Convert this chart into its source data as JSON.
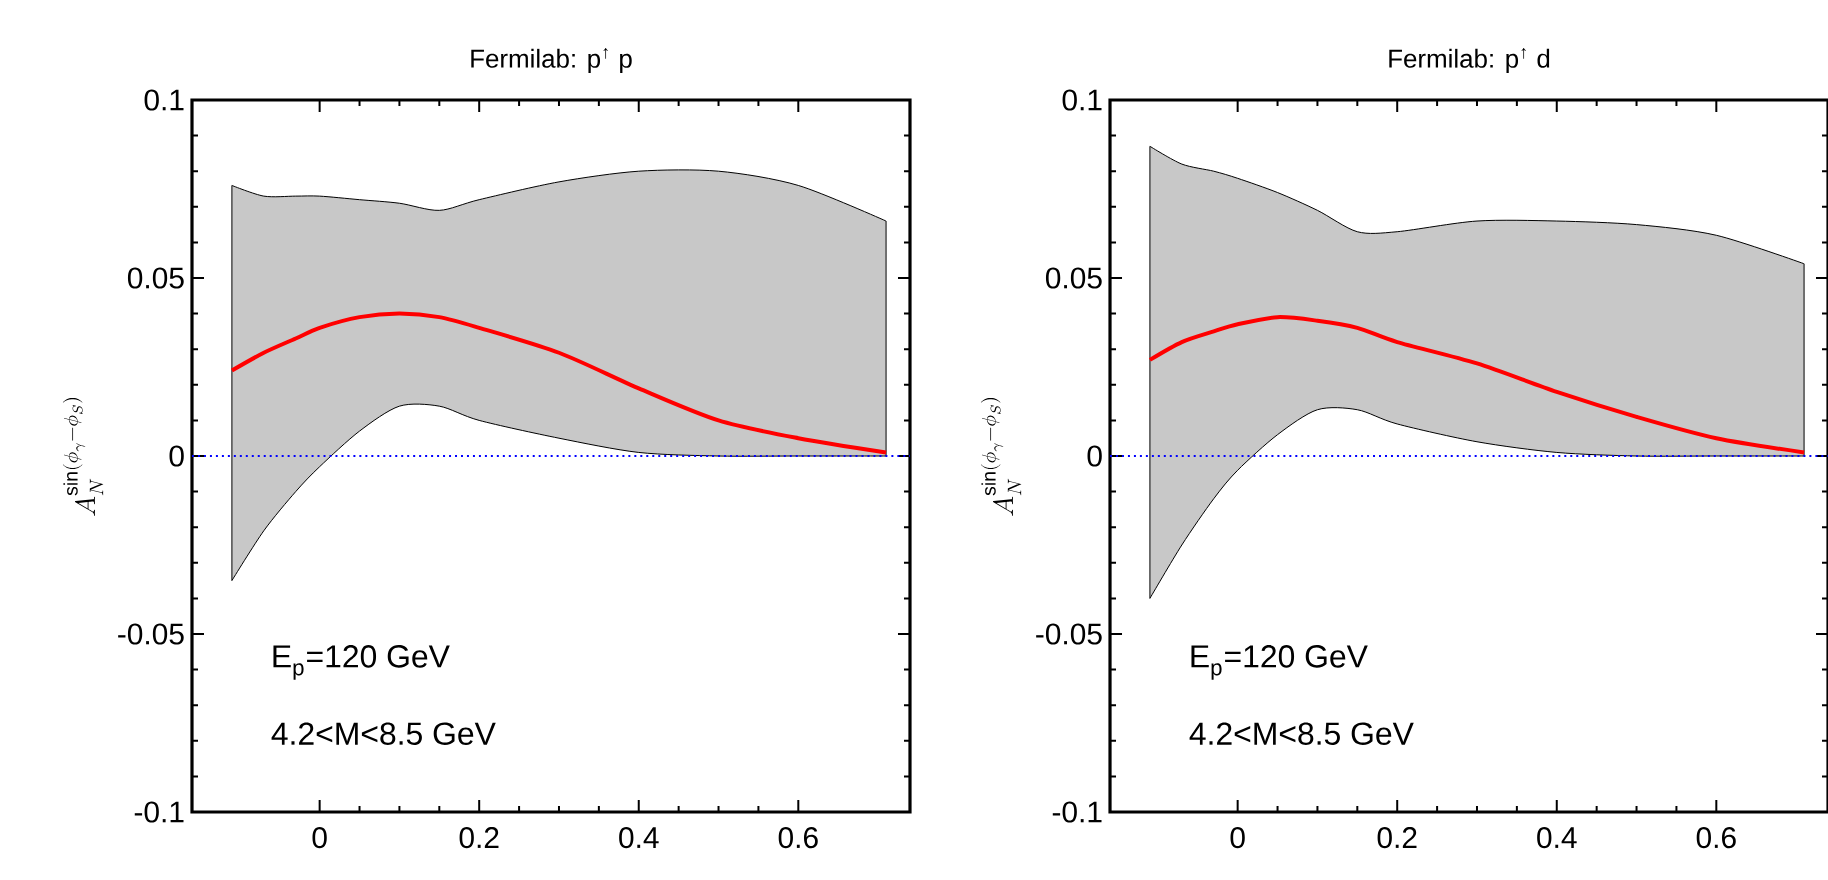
{
  "chart_data": [
    {
      "type": "line",
      "title": "Fermilab: p$^{↑}$ p",
      "ylabel": "A_N^{\\sin(\\phi_\\gamma-\\phi_S)}",
      "xlim": [
        -0.16,
        0.74
      ],
      "ylim": [
        -0.1,
        0.1
      ],
      "xticks": [
        0,
        0.2,
        0.4,
        0.6
      ],
      "yticks": [
        -0.1,
        -0.05,
        0,
        0.05,
        0.1
      ],
      "grid": false,
      "marker": "none",
      "line_style": "solid",
      "annotations": [
        "E$_{p}$=120 GeV",
        "4.2<M<8.5 GeV"
      ],
      "ref_lines": [
        {
          "axis": "y",
          "value": 0,
          "color": "#0000ff",
          "line_style": "dotted"
        }
      ],
      "series": [
        {
          "color": "#ff0000",
          "x": [
            -0.11,
            -0.07,
            -0.03,
            0,
            0.05,
            0.1,
            0.15,
            0.2,
            0.3,
            0.4,
            0.5,
            0.6,
            0.71
          ],
          "values": [
            0.024,
            0.029,
            0.033,
            0.036,
            0.039,
            0.04,
            0.039,
            0.036,
            0.029,
            0.019,
            0.01,
            0.005,
            0.001
          ],
          "lower": [
            -0.035,
            -0.021,
            -0.01,
            -0.003,
            0.007,
            0.014,
            0.014,
            0.01,
            0.005,
            0.001,
            0.0,
            0.0,
            0.0
          ],
          "upper": [
            0.076,
            0.073,
            0.073,
            0.073,
            0.072,
            0.071,
            0.069,
            0.072,
            0.077,
            0.08,
            0.08,
            0.076,
            0.066
          ]
        }
      ]
    },
    {
      "type": "line",
      "title": "Fermilab: p$^{↑}$ d",
      "ylabel": "A_N^{\\sin(\\phi_\\gamma-\\phi_S)}",
      "xlim": [
        -0.16,
        0.74
      ],
      "ylim": [
        -0.1,
        0.1
      ],
      "xticks": [
        0,
        0.2,
        0.4,
        0.6
      ],
      "yticks": [
        -0.1,
        -0.05,
        0,
        0.05,
        0.1
      ],
      "grid": false,
      "marker": "none",
      "line_style": "solid",
      "annotations": [
        "E$_{p}$=120 GeV",
        "4.2<M<8.5 GeV"
      ],
      "ref_lines": [
        {
          "axis": "y",
          "value": 0,
          "color": "#0000ff",
          "line_style": "dotted"
        }
      ],
      "series": [
        {
          "color": "#ff0000",
          "x": [
            -0.11,
            -0.07,
            -0.03,
            0,
            0.05,
            0.1,
            0.15,
            0.2,
            0.3,
            0.4,
            0.5,
            0.6,
            0.71
          ],
          "values": [
            0.027,
            0.032,
            0.035,
            0.037,
            0.039,
            0.038,
            0.036,
            0.032,
            0.026,
            0.018,
            0.011,
            0.005,
            0.001
          ],
          "lower": [
            -0.04,
            -0.025,
            -0.012,
            -0.004,
            0.006,
            0.013,
            0.013,
            0.009,
            0.004,
            0.001,
            0.0,
            0.0,
            0.0
          ],
          "upper": [
            0.087,
            0.082,
            0.08,
            0.078,
            0.074,
            0.069,
            0.063,
            0.063,
            0.066,
            0.066,
            0.065,
            0.062,
            0.054
          ]
        }
      ]
    }
  ]
}
